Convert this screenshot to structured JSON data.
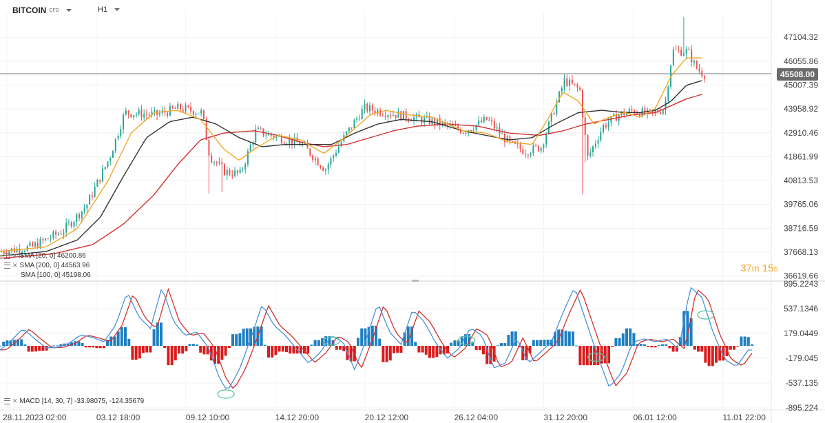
{
  "header": {
    "symbol": "BITCOIN",
    "instrument_type": "CFD",
    "timeframe": "H1"
  },
  "current_price_label": "45508.00",
  "countdown": {
    "minutes": "37",
    "m": "m",
    "seconds": "15",
    "s": "s"
  },
  "legend": {
    "sma1": "SMA [20, 0]  46200.86",
    "sma2": "SMA [200, 0]  44563.96",
    "sma3": "SMA [100, 0]  45198.06",
    "macd": "MACD [14, 30, 7]  -33.98075,  -124.35679"
  },
  "colors": {
    "up": "#26a69a",
    "down": "#ef5350",
    "sma_fast": "#f5a623",
    "sma_mid": "#333333",
    "sma_slow": "#d32f2f",
    "macd_line": "#4a90d9",
    "signal_line": "#d32f2f",
    "hist_pos": "#1e7fc1",
    "hist_neg": "#d91c1c",
    "highlight": "#5cc4a0"
  },
  "chart_data": {
    "type": "candlestick",
    "x_tick_labels": [
      "28.11.2023  02:00",
      "03.12  18:00",
      "09.12  10:00",
      "14.12  20:00",
      "20.12  12:00",
      "26.12  04:00",
      "31.12  20:00",
      "06.01  12:00",
      "11.01  22:00"
    ],
    "x_tick_positions": [
      0.0,
      0.116,
      0.232,
      0.348,
      0.464,
      0.58,
      0.696,
      0.812,
      0.928
    ],
    "price_axis_labels": [
      "47104.32",
      "46055.86",
      "45007.39",
      "43958.92",
      "42910.46",
      "41861.99",
      "40813.53",
      "39765.06",
      "38716.59",
      "37668.13",
      "36619.66"
    ],
    "price_axis_values": [
      47104.32,
      46055.86,
      45007.39,
      43958.92,
      42910.46,
      41861.99,
      40813.53,
      39765.06,
      38716.59,
      37668.13,
      36619.66
    ],
    "price_range": [
      36519.66,
      48200
    ],
    "current_price": 45508.0,
    "price_anchors": [
      [
        0,
        37700
      ],
      [
        0.04,
        37900
      ],
      [
        0.08,
        38600
      ],
      [
        0.11,
        39700
      ],
      [
        0.14,
        41800
      ],
      [
        0.16,
        43800
      ],
      [
        0.2,
        43700
      ],
      [
        0.23,
        44000
      ],
      [
        0.26,
        43800
      ],
      [
        0.27,
        41900
      ],
      [
        0.29,
        41200
      ],
      [
        0.31,
        41100
      ],
      [
        0.33,
        43000
      ],
      [
        0.36,
        42700
      ],
      [
        0.39,
        42400
      ],
      [
        0.42,
        41300
      ],
      [
        0.44,
        42500
      ],
      [
        0.47,
        44000
      ],
      [
        0.5,
        43800
      ],
      [
        0.53,
        43600
      ],
      [
        0.56,
        43400
      ],
      [
        0.6,
        43000
      ],
      [
        0.63,
        43500
      ],
      [
        0.66,
        42400
      ],
      [
        0.68,
        42100
      ],
      [
        0.7,
        42300
      ],
      [
        0.73,
        45200
      ],
      [
        0.75,
        44800
      ],
      [
        0.76,
        41800
      ],
      [
        0.78,
        43200
      ],
      [
        0.8,
        43700
      ],
      [
        0.82,
        43900
      ],
      [
        0.84,
        43700
      ],
      [
        0.86,
        44000
      ],
      [
        0.87,
        46500
      ],
      [
        0.89,
        46500
      ],
      [
        0.9,
        45800
      ],
      [
        0.91,
        45500
      ]
    ],
    "sma_fast_anchors": [
      [
        0,
        37700
      ],
      [
        0.06,
        37900
      ],
      [
        0.1,
        38700
      ],
      [
        0.14,
        40800
      ],
      [
        0.17,
        42900
      ],
      [
        0.2,
        43800
      ],
      [
        0.23,
        43900
      ],
      [
        0.26,
        43500
      ],
      [
        0.29,
        42200
      ],
      [
        0.31,
        41700
      ],
      [
        0.33,
        42200
      ],
      [
        0.36,
        42800
      ],
      [
        0.39,
        42600
      ],
      [
        0.42,
        42000
      ],
      [
        0.45,
        42800
      ],
      [
        0.48,
        43700
      ],
      [
        0.5,
        43900
      ],
      [
        0.53,
        43700
      ],
      [
        0.56,
        43600
      ],
      [
        0.6,
        43000
      ],
      [
        0.63,
        42900
      ],
      [
        0.66,
        42500
      ],
      [
        0.69,
        42400
      ],
      [
        0.71,
        43500
      ],
      [
        0.73,
        44700
      ],
      [
        0.75,
        44300
      ],
      [
        0.77,
        43300
      ],
      [
        0.79,
        43600
      ],
      [
        0.81,
        43800
      ],
      [
        0.83,
        43600
      ],
      [
        0.85,
        44000
      ],
      [
        0.87,
        45400
      ],
      [
        0.89,
        46200
      ],
      [
        0.91,
        46200
      ]
    ],
    "sma_mid_anchors": [
      [
        0,
        37500
      ],
      [
        0.06,
        37700
      ],
      [
        0.1,
        38200
      ],
      [
        0.13,
        39200
      ],
      [
        0.16,
        41000
      ],
      [
        0.19,
        42700
      ],
      [
        0.22,
        43400
      ],
      [
        0.25,
        43600
      ],
      [
        0.28,
        43300
      ],
      [
        0.31,
        42700
      ],
      [
        0.34,
        42300
      ],
      [
        0.37,
        42400
      ],
      [
        0.4,
        42400
      ],
      [
        0.43,
        42400
      ],
      [
        0.46,
        42900
      ],
      [
        0.49,
        43300
      ],
      [
        0.52,
        43500
      ],
      [
        0.56,
        43400
      ],
      [
        0.6,
        43000
      ],
      [
        0.63,
        42800
      ],
      [
        0.66,
        42600
      ],
      [
        0.69,
        42700
      ],
      [
        0.72,
        43300
      ],
      [
        0.75,
        43800
      ],
      [
        0.78,
        43900
      ],
      [
        0.81,
        43800
      ],
      [
        0.83,
        43800
      ],
      [
        0.85,
        43900
      ],
      [
        0.87,
        44300
      ],
      [
        0.89,
        45000
      ],
      [
        0.91,
        45200
      ]
    ],
    "sma_slow_anchors": [
      [
        0,
        37400
      ],
      [
        0.07,
        37600
      ],
      [
        0.12,
        38000
      ],
      [
        0.16,
        38900
      ],
      [
        0.2,
        40200
      ],
      [
        0.23,
        41500
      ],
      [
        0.26,
        42600
      ],
      [
        0.29,
        42900
      ],
      [
        0.33,
        43000
      ],
      [
        0.36,
        42800
      ],
      [
        0.39,
        42500
      ],
      [
        0.42,
        42300
      ],
      [
        0.45,
        42400
      ],
      [
        0.48,
        42700
      ],
      [
        0.51,
        43000
      ],
      [
        0.54,
        43200
      ],
      [
        0.58,
        43300
      ],
      [
        0.62,
        43200
      ],
      [
        0.66,
        42900
      ],
      [
        0.7,
        42800
      ],
      [
        0.73,
        43000
      ],
      [
        0.76,
        43300
      ],
      [
        0.79,
        43500
      ],
      [
        0.82,
        43700
      ],
      [
        0.85,
        43800
      ],
      [
        0.87,
        44100
      ],
      [
        0.89,
        44400
      ],
      [
        0.91,
        44600
      ]
    ],
    "macd_axis_labels": [
      "895.2243",
      "537.1346",
      "179.0449",
      "-179.045",
      "-537.135",
      "-895.224"
    ],
    "macd_axis_values": [
      895.2243,
      537.1346,
      179.0449,
      -179.045,
      -537.135,
      -895.224
    ],
    "macd_range": [
      -895.224,
      895.2243
    ],
    "macd_anchors": [
      [
        0,
        -60
      ],
      [
        0.015,
        80
      ],
      [
        0.03,
        250
      ],
      [
        0.045,
        100
      ],
      [
        0.06,
        -30
      ],
      [
        0.075,
        -20
      ],
      [
        0.09,
        40
      ],
      [
        0.105,
        160
      ],
      [
        0.12,
        120
      ],
      [
        0.135,
        60
      ],
      [
        0.15,
        300
      ],
      [
        0.165,
        780
      ],
      [
        0.18,
        420
      ],
      [
        0.195,
        250
      ],
      [
        0.21,
        850
      ],
      [
        0.225,
        350
      ],
      [
        0.24,
        150
      ],
      [
        0.255,
        200
      ],
      [
        0.27,
        -20
      ],
      [
        0.285,
        -480
      ],
      [
        0.295,
        -650
      ],
      [
        0.31,
        -350
      ],
      [
        0.325,
        100
      ],
      [
        0.34,
        600
      ],
      [
        0.355,
        300
      ],
      [
        0.37,
        150
      ],
      [
        0.385,
        -50
      ],
      [
        0.4,
        -250
      ],
      [
        0.415,
        -100
      ],
      [
        0.43,
        150
      ],
      [
        0.445,
        50
      ],
      [
        0.46,
        -350
      ],
      [
        0.475,
        100
      ],
      [
        0.49,
        620
      ],
      [
        0.505,
        200
      ],
      [
        0.52,
        20
      ],
      [
        0.535,
        520
      ],
      [
        0.55,
        350
      ],
      [
        0.565,
        40
      ],
      [
        0.58,
        -180
      ],
      [
        0.595,
        -40
      ],
      [
        0.61,
        260
      ],
      [
        0.625,
        150
      ],
      [
        0.64,
        -320
      ],
      [
        0.655,
        -250
      ],
      [
        0.67,
        120
      ],
      [
        0.685,
        -250
      ],
      [
        0.7,
        -100
      ],
      [
        0.715,
        60
      ],
      [
        0.73,
        480
      ],
      [
        0.745,
        850
      ],
      [
        0.76,
        350
      ],
      [
        0.775,
        -150
      ],
      [
        0.79,
        -600
      ],
      [
        0.805,
        -400
      ],
      [
        0.82,
        50
      ],
      [
        0.835,
        100
      ],
      [
        0.85,
        60
      ],
      [
        0.865,
        100
      ],
      [
        0.88,
        -50
      ],
      [
        0.895,
        850
      ],
      [
        0.91,
        700
      ],
      [
        0.925,
        180
      ],
      [
        0.94,
        -200
      ],
      [
        0.955,
        -300
      ],
      [
        0.97,
        -60
      ]
    ],
    "macd_highlights": [
      0.293,
      0.43,
      0.605,
      0.773,
      0.915
    ],
    "macd_last": -33.98075,
    "signal_last": -124.35679
  }
}
